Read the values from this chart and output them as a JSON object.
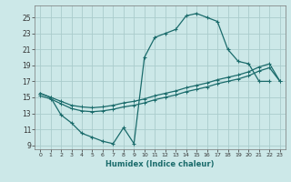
{
  "bg_color": "#cce8e8",
  "line_color": "#1a6b6b",
  "grid_color": "#aacccc",
  "xlim": [
    -0.5,
    23.5
  ],
  "ylim": [
    8.5,
    26.5
  ],
  "xticks": [
    0,
    1,
    2,
    3,
    4,
    5,
    6,
    7,
    8,
    9,
    10,
    11,
    12,
    13,
    14,
    15,
    16,
    17,
    18,
    19,
    20,
    21,
    22,
    23
  ],
  "yticks": [
    9,
    11,
    13,
    15,
    17,
    19,
    21,
    23,
    25
  ],
  "xlabel": "Humidex (Indice chaleur)",
  "main_x": [
    0,
    1,
    2,
    3,
    4,
    5,
    6,
    7,
    8,
    9,
    10,
    11,
    12,
    13,
    14,
    15,
    16,
    17,
    18,
    19,
    20,
    21,
    22
  ],
  "main_y": [
    15.5,
    15.0,
    12.8,
    11.8,
    10.5,
    10.0,
    9.5,
    9.2,
    11.2,
    9.2,
    20.0,
    22.5,
    23.0,
    23.5,
    25.2,
    25.5,
    25.0,
    24.5,
    21.0,
    19.5,
    19.2,
    17.0,
    17.0
  ],
  "trend1_x": [
    0,
    1,
    2,
    3,
    4,
    5,
    6,
    7,
    8,
    9,
    10,
    11,
    12,
    13,
    14,
    15,
    16,
    17,
    18,
    19,
    20,
    21,
    22,
    23
  ],
  "trend1_y": [
    15.5,
    15.0,
    14.5,
    14.0,
    13.8,
    13.7,
    13.8,
    14.0,
    14.3,
    14.5,
    14.8,
    15.2,
    15.5,
    15.8,
    16.2,
    16.5,
    16.8,
    17.2,
    17.5,
    17.8,
    18.2,
    18.8,
    19.2,
    17.0
  ],
  "trend2_x": [
    0,
    1,
    2,
    3,
    4,
    5,
    6,
    7,
    8,
    9,
    10,
    11,
    12,
    13,
    14,
    15,
    16,
    17,
    18,
    19,
    20,
    21,
    22,
    23
  ],
  "trend2_y": [
    15.2,
    14.8,
    14.2,
    13.6,
    13.3,
    13.2,
    13.3,
    13.5,
    13.8,
    14.0,
    14.3,
    14.7,
    15.0,
    15.3,
    15.7,
    16.0,
    16.3,
    16.7,
    17.0,
    17.3,
    17.7,
    18.3,
    18.7,
    17.0
  ]
}
